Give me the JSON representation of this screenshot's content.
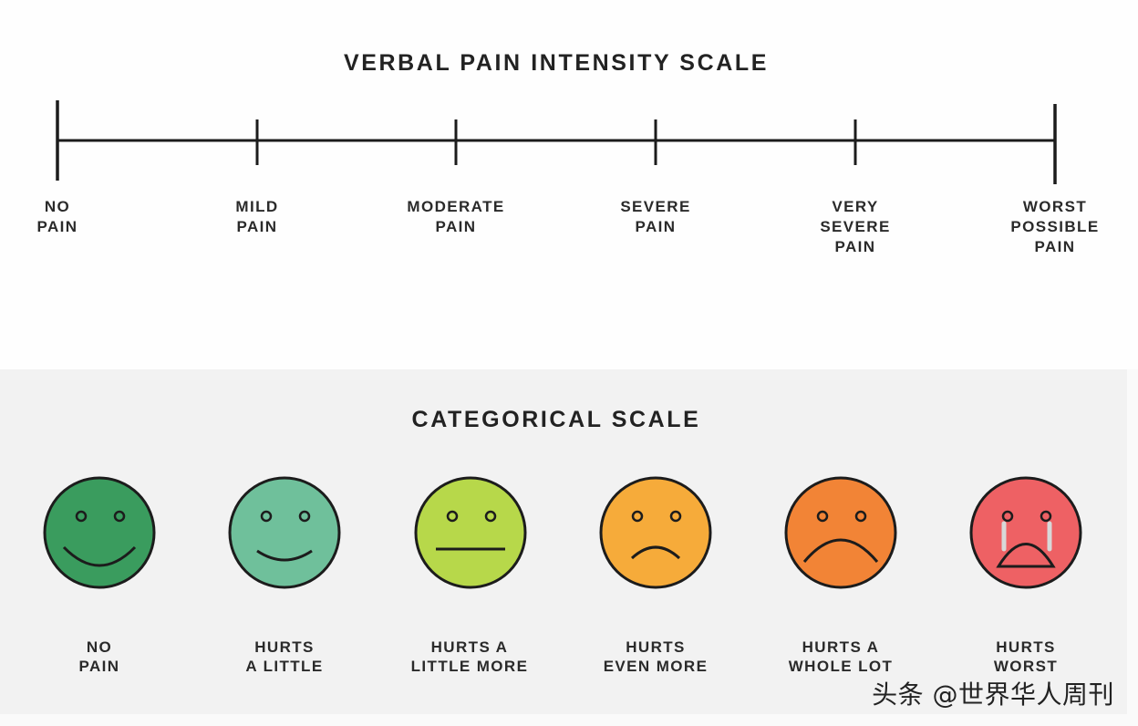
{
  "verbal_scale": {
    "title": "VERBAL PAIN INTENSITY SCALE",
    "labels": [
      "NO\nPAIN",
      "MILD\nPAIN",
      "MODERATE\nPAIN",
      "SEVERE\nPAIN",
      "VERY\nSEVERE\nPAIN",
      "WORST\nPOSSIBLE\nPAIN"
    ]
  },
  "categorical_scale": {
    "title": "CATEGORICAL SCALE",
    "faces": [
      {
        "label": "NO\nPAIN",
        "color": "#3a9c5e",
        "expression": "big-smile-face"
      },
      {
        "label": "HURTS\nA LITTLE",
        "color": "#6fc09b",
        "expression": "smile-face"
      },
      {
        "label": "HURTS A\nLITTLE MORE",
        "color": "#b7d84a",
        "expression": "neutral-face"
      },
      {
        "label": "HURTS\nEVEN MORE",
        "color": "#f6ab3a",
        "expression": "frown-face"
      },
      {
        "label": "HURTS A\nWHOLE LOT",
        "color": "#f28436",
        "expression": "big-frown-face"
      },
      {
        "label": "HURTS\nWORST",
        "color": "#ee6164",
        "expression": "crying-face"
      }
    ]
  },
  "watermark": "头条 @世界华人周刊"
}
